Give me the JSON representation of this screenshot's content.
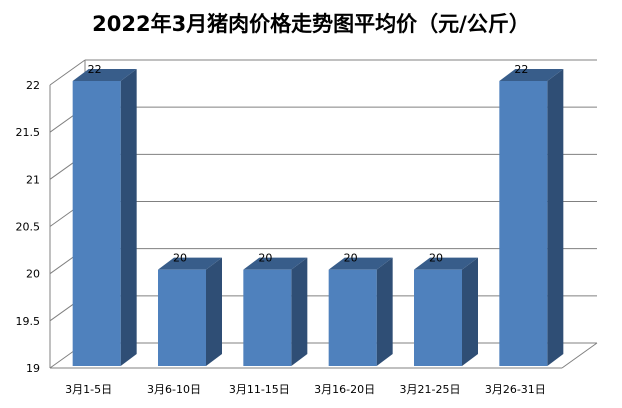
{
  "chart_data": {
    "type": "bar",
    "title": "2022年3月猪肉价格走势图平均价（元/公斤）",
    "categories": [
      "3月1-5日",
      "3月6-10日",
      "3月11-15日",
      "3月16-20日",
      "3月21-25日",
      "3月26-31日"
    ],
    "values": [
      22,
      20,
      20,
      20,
      20,
      22
    ],
    "data_labels": [
      "22",
      "20",
      "20",
      "20",
      "20",
      "22"
    ],
    "ylim": [
      19,
      22
    ],
    "yticks": [
      "19",
      "19.5",
      "20",
      "20.5",
      "21",
      "21.5",
      "22"
    ],
    "xlabel": "",
    "ylabel": "",
    "grid": true,
    "style": "3d-column",
    "colors": {
      "bar_front": "#4F81BD",
      "bar_side": "#2F4E75",
      "bar_top": "#385D8A",
      "grid": "#808080"
    }
  }
}
